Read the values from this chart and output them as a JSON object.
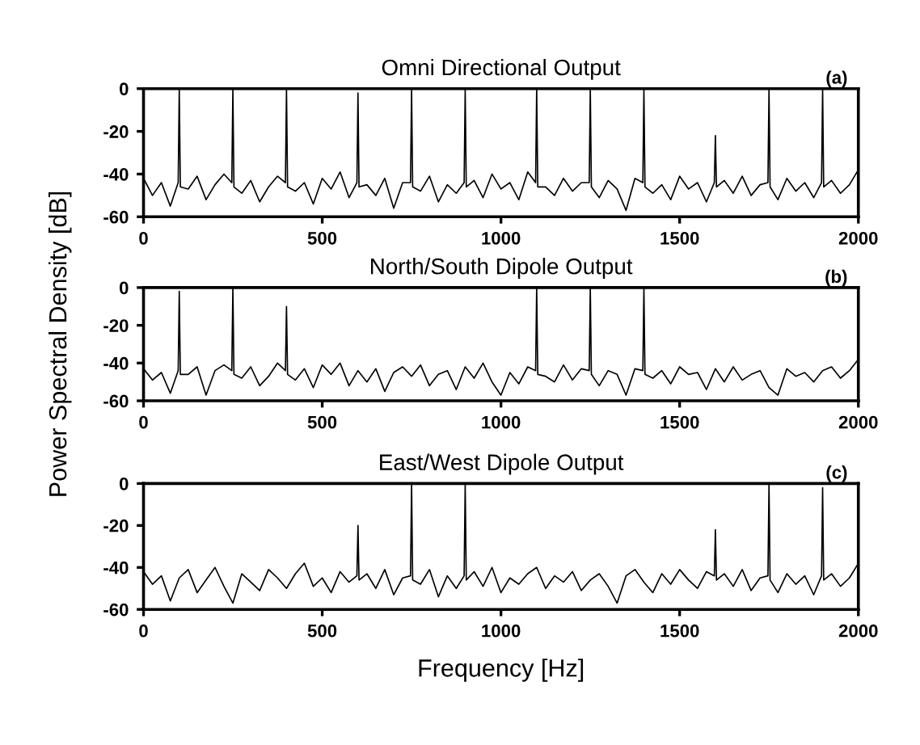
{
  "chart_data": [
    {
      "type": "line",
      "title": "Omni Directional Output",
      "annotations": [
        "(a)"
      ],
      "xlim": [
        0,
        2000
      ],
      "ylim": [
        -60,
        0
      ],
      "xticks": [
        0,
        500,
        1000,
        1500,
        2000
      ],
      "yticks": [
        0,
        -20,
        -40,
        -60
      ],
      "grid": false,
      "legend": false,
      "series": [
        {
          "color": "#000000",
          "x": [
            0,
            25,
            50,
            75,
            97,
            100,
            103,
            125,
            150,
            175,
            200,
            225,
            247,
            250,
            253,
            275,
            300,
            325,
            350,
            375,
            397,
            400,
            403,
            425,
            450,
            475,
            500,
            525,
            550,
            575,
            597,
            600,
            603,
            625,
            650,
            675,
            700,
            725,
            747,
            750,
            753,
            775,
            800,
            825,
            850,
            875,
            897,
            900,
            903,
            925,
            950,
            975,
            1000,
            1025,
            1050,
            1075,
            1097,
            1100,
            1103,
            1125,
            1150,
            1175,
            1200,
            1225,
            1247,
            1250,
            1253,
            1275,
            1300,
            1325,
            1350,
            1375,
            1397,
            1400,
            1403,
            1425,
            1450,
            1475,
            1500,
            1525,
            1550,
            1575,
            1597,
            1600,
            1603,
            1625,
            1650,
            1675,
            1700,
            1725,
            1747,
            1750,
            1753,
            1775,
            1800,
            1825,
            1850,
            1875,
            1897,
            1900,
            1903,
            1925,
            1950,
            1975,
            2000
          ],
          "values": [
            -42,
            -50,
            -44,
            -55,
            -44,
            0,
            -46,
            -47,
            -41,
            -52,
            -45,
            -40,
            -44,
            0,
            -46,
            -49,
            -43,
            -53,
            -46,
            -41,
            -44,
            0,
            -46,
            -48,
            -44,
            -54,
            -42,
            -47,
            -39,
            -51,
            -44,
            -2,
            -46,
            -45,
            -50,
            -42,
            -56,
            -44,
            -44,
            0,
            -46,
            -48,
            -41,
            -53,
            -45,
            -49,
            -44,
            0,
            -46,
            -43,
            -51,
            -40,
            -47,
            -44,
            -52,
            -39,
            -44,
            0,
            -46,
            -46,
            -50,
            -42,
            -48,
            -44,
            -44,
            0,
            -46,
            -51,
            -43,
            -47,
            -57,
            -42,
            -44,
            0,
            -46,
            -49,
            -45,
            -52,
            -41,
            -47,
            -44,
            -53,
            -44,
            -22,
            -46,
            -43,
            -49,
            -41,
            -50,
            -45,
            -44,
            0,
            -46,
            -52,
            -42,
            -48,
            -44,
            -51,
            -44,
            0,
            -46,
            -43,
            -49,
            -45,
            -38
          ]
        }
      ]
    },
    {
      "type": "line",
      "title": "North/South Dipole Output",
      "ylabel": "Power Spectral Density [dB]",
      "annotations": [
        "(b)"
      ],
      "xlim": [
        0,
        2000
      ],
      "ylim": [
        -60,
        0
      ],
      "xticks": [
        0,
        500,
        1000,
        1500,
        2000
      ],
      "yticks": [
        0,
        -20,
        -40,
        -60
      ],
      "grid": false,
      "legend": false,
      "series": [
        {
          "color": "#000000",
          "x": [
            0,
            25,
            50,
            75,
            97,
            100,
            103,
            125,
            150,
            175,
            200,
            225,
            247,
            250,
            253,
            275,
            300,
            325,
            350,
            375,
            397,
            400,
            403,
            425,
            450,
            475,
            500,
            525,
            550,
            575,
            600,
            625,
            650,
            675,
            700,
            725,
            750,
            775,
            800,
            825,
            850,
            875,
            900,
            925,
            950,
            975,
            1000,
            1025,
            1050,
            1075,
            1097,
            1100,
            1103,
            1125,
            1150,
            1175,
            1200,
            1225,
            1247,
            1250,
            1253,
            1275,
            1300,
            1325,
            1350,
            1375,
            1397,
            1400,
            1403,
            1425,
            1450,
            1475,
            1500,
            1525,
            1550,
            1575,
            1600,
            1625,
            1650,
            1675,
            1700,
            1725,
            1750,
            1775,
            1800,
            1825,
            1850,
            1875,
            1900,
            1925,
            1950,
            1975,
            2000
          ],
          "values": [
            -43,
            -49,
            -45,
            -56,
            -44,
            -2,
            -46,
            -46,
            -42,
            -57,
            -44,
            -41,
            -44,
            0,
            -46,
            -48,
            -42,
            -52,
            -47,
            -40,
            -44,
            -10,
            -46,
            -49,
            -43,
            -53,
            -41,
            -46,
            -40,
            -52,
            -44,
            -50,
            -43,
            -55,
            -45,
            -42,
            -47,
            -41,
            -52,
            -46,
            -44,
            -54,
            -42,
            -48,
            -40,
            -50,
            -57,
            -45,
            -51,
            -42,
            -44,
            0,
            -46,
            -47,
            -50,
            -41,
            -49,
            -43,
            -44,
            0,
            -46,
            -52,
            -44,
            -46,
            -57,
            -43,
            -44,
            0,
            -46,
            -48,
            -44,
            -51,
            -42,
            -46,
            -45,
            -54,
            -43,
            -50,
            -42,
            -49,
            -46,
            -44,
            -53,
            -57,
            -43,
            -47,
            -45,
            -50,
            -44,
            -42,
            -48,
            -44,
            -38
          ]
        }
      ]
    },
    {
      "type": "line",
      "title": "East/West Dipole Output",
      "xlabel": "Frequency [Hz]",
      "annotations": [
        "(c)"
      ],
      "xlim": [
        0,
        2000
      ],
      "ylim": [
        -60,
        0
      ],
      "xticks": [
        0,
        500,
        1000,
        1500,
        2000
      ],
      "yticks": [
        0,
        -20,
        -40,
        -60
      ],
      "grid": false,
      "legend": false,
      "series": [
        {
          "color": "#000000",
          "x": [
            0,
            25,
            50,
            75,
            100,
            125,
            150,
            175,
            200,
            225,
            250,
            275,
            300,
            325,
            350,
            375,
            400,
            425,
            450,
            475,
            500,
            525,
            550,
            575,
            597,
            600,
            603,
            625,
            650,
            675,
            700,
            725,
            747,
            750,
            753,
            775,
            800,
            825,
            850,
            875,
            897,
            900,
            903,
            925,
            950,
            975,
            1000,
            1025,
            1050,
            1075,
            1100,
            1125,
            1150,
            1175,
            1200,
            1225,
            1250,
            1275,
            1300,
            1325,
            1350,
            1375,
            1400,
            1425,
            1450,
            1475,
            1500,
            1525,
            1550,
            1575,
            1597,
            1600,
            1603,
            1625,
            1650,
            1675,
            1700,
            1725,
            1747,
            1750,
            1753,
            1775,
            1800,
            1825,
            1850,
            1875,
            1897,
            1900,
            1903,
            1925,
            1950,
            1975,
            2000
          ],
          "values": [
            -42,
            -48,
            -44,
            -56,
            -45,
            -41,
            -52,
            -46,
            -40,
            -49,
            -57,
            -43,
            -47,
            -51,
            -41,
            -45,
            -50,
            -43,
            -38,
            -49,
            -45,
            -52,
            -42,
            -47,
            -44,
            -20,
            -46,
            -43,
            -50,
            -41,
            -53,
            -45,
            -44,
            0,
            -46,
            -48,
            -41,
            -54,
            -44,
            -50,
            -44,
            0,
            -46,
            -42,
            -49,
            -40,
            -52,
            -45,
            -48,
            -43,
            -40,
            -50,
            -44,
            -47,
            -42,
            -51,
            -46,
            -43,
            -49,
            -57,
            -44,
            -41,
            -47,
            -52,
            -43,
            -48,
            -41,
            -46,
            -50,
            -42,
            -44,
            -22,
            -46,
            -43,
            -49,
            -41,
            -51,
            -45,
            -44,
            0,
            -46,
            -52,
            -43,
            -48,
            -44,
            -53,
            -44,
            -2,
            -46,
            -43,
            -49,
            -45,
            -38
          ]
        }
      ]
    }
  ]
}
